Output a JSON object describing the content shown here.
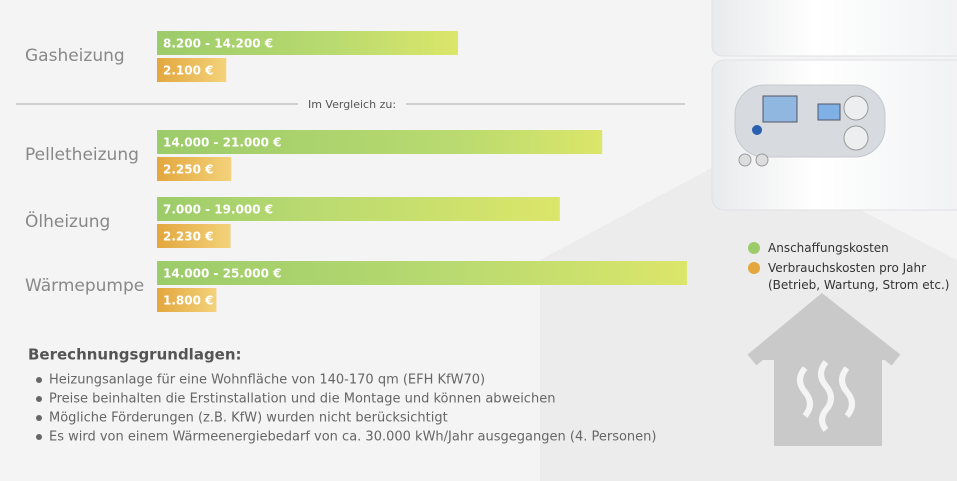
{
  "chart_data": {
    "type": "bar",
    "categories": [
      "Gasheizung",
      "Pelletheizung",
      "Ölheizung",
      "Wärmepumpe"
    ],
    "divider_label": "Im Vergleich zu:",
    "series": [
      {
        "name": "Anschaffungskosten",
        "color": "#9ccb6a",
        "low": [
          8200,
          14000,
          7000,
          14000
        ],
        "values": [
          14200,
          21000,
          19000,
          25000
        ],
        "value_labels": [
          "8.200 - 14.200 €",
          "14.000 - 21.000 €",
          "7.000 - 19.000 €",
          "14.000 - 25.000 €"
        ]
      },
      {
        "name": "Verbrauchskosten pro Jahr (Betrieb, Wartung, Strom etc.)",
        "color": "#e3a73e",
        "values": [
          2100,
          2250,
          2230,
          1800
        ],
        "value_labels": [
          "2.100 €",
          "2.250 €",
          "2.230 €",
          "1.800 €"
        ]
      }
    ],
    "notes_title": "Berechnungsgrundlagen:",
    "notes": [
      "Heizungsanlage für eine Wohnfläche von 140-170 qm (EFH KfW70)",
      "Preise beinhalten die Erstinstallation und die Montage und können abweichen",
      "Mögliche Förderungen (z.B. KfW) wurden nicht berücksichtigt",
      "Es wird von einem Wärmeenergiebedarf von ca. 30.000 kWh/Jahr ausgegangen (4. Personen)"
    ]
  }
}
